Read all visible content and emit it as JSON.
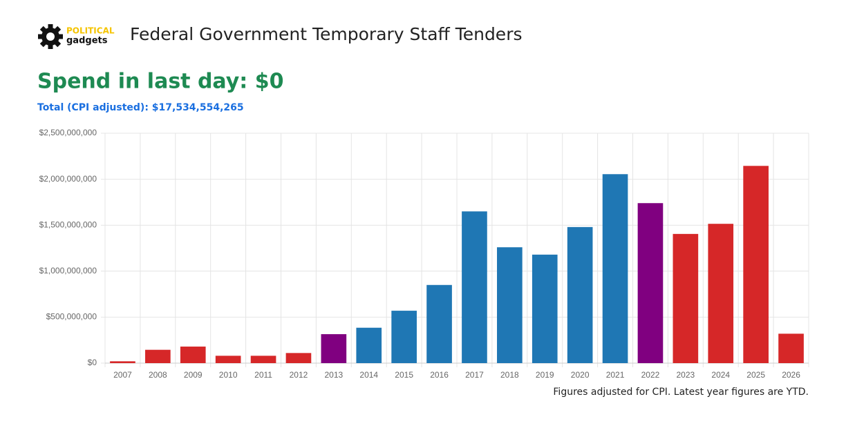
{
  "logo": {
    "top": "POLITICAL",
    "bottom": "gadgets"
  },
  "title": "Federal Government Temporary Staff Tenders",
  "headline": "Spend in last day: $0",
  "total": "Total (CPI adjusted): $17,534,554,265",
  "footnote": "Figures adjusted for CPI. Latest year figures are YTD.",
  "chart_data": {
    "type": "bar",
    "categories": [
      "2007",
      "2008",
      "2009",
      "2010",
      "2011",
      "2012",
      "2013",
      "2014",
      "2015",
      "2016",
      "2017",
      "2018",
      "2019",
      "2020",
      "2021",
      "2022",
      "2023",
      "2024",
      "2025",
      "2026"
    ],
    "values": [
      20000000,
      145000000,
      180000000,
      80000000,
      80000000,
      110000000,
      315000000,
      385000000,
      570000000,
      850000000,
      1650000000,
      1260000000,
      1180000000,
      1480000000,
      2055000000,
      1740000000,
      1405000000,
      1515000000,
      2145000000,
      320000000
    ],
    "colors": [
      "#d62728",
      "#d62728",
      "#d62728",
      "#d62728",
      "#d62728",
      "#d62728",
      "#800080",
      "#1f77b4",
      "#1f77b4",
      "#1f77b4",
      "#1f77b4",
      "#1f77b4",
      "#1f77b4",
      "#1f77b4",
      "#1f77b4",
      "#800080",
      "#d62728",
      "#d62728",
      "#d62728",
      "#d62728"
    ],
    "ylim": [
      0,
      2500000000
    ],
    "yticks": [
      {
        "value": 0,
        "label": "$0"
      },
      {
        "value": 500000000,
        "label": "$500,000,000"
      },
      {
        "value": 1000000000,
        "label": "$1,000,000,000"
      },
      {
        "value": 1500000000,
        "label": "$1,500,000,000"
      },
      {
        "value": 2000000000,
        "label": "$2,000,000,000"
      },
      {
        "value": 2500000000,
        "label": "$2,500,000,000"
      }
    ],
    "grid": true
  }
}
